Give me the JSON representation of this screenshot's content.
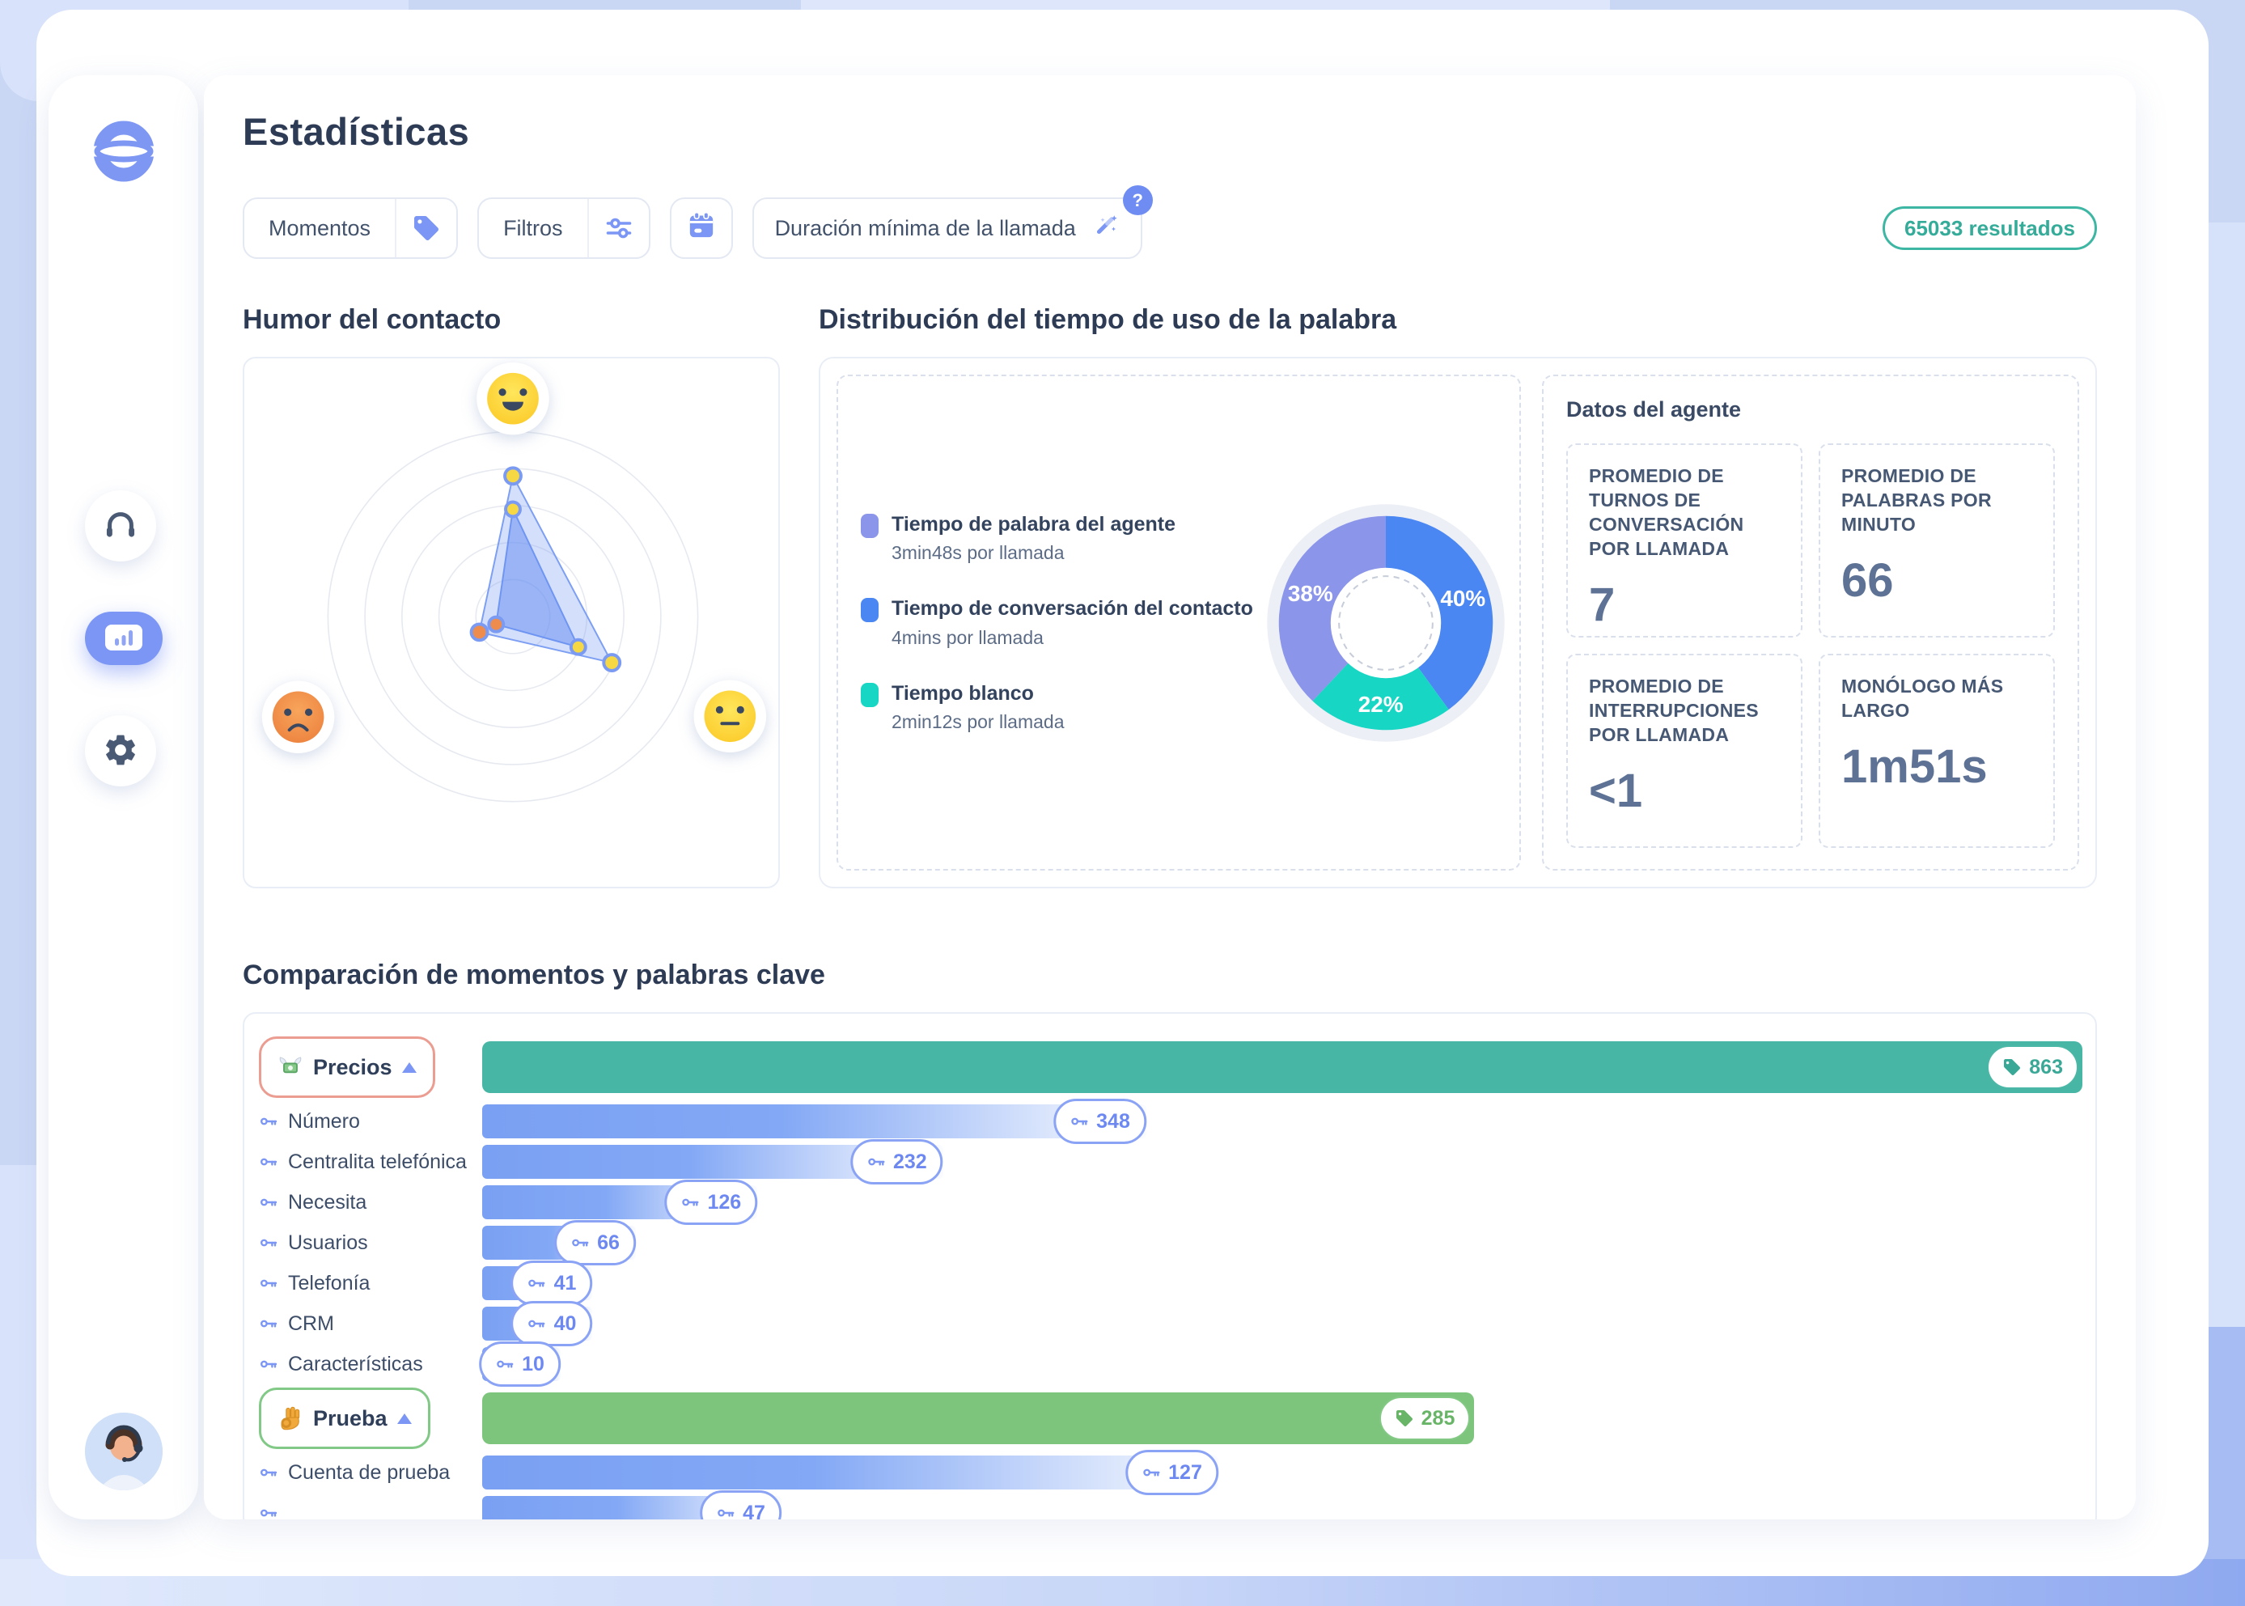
{
  "page": {
    "title": "Estadísticas"
  },
  "header": {
    "filters": {
      "momentos_label": "Momentos",
      "filtros_label": "Filtros",
      "duracion_label": "Duración mínima de la llamada",
      "help_badge": "?"
    },
    "results_badge": "65033 resultados"
  },
  "sidebar": {
    "items": [
      {
        "name": "calls",
        "icon": "headphones-icon",
        "active": false
      },
      {
        "name": "statistics",
        "icon": "bar-chart-icon",
        "active": true
      },
      {
        "name": "settings",
        "icon": "gear-icon",
        "active": false
      }
    ]
  },
  "sections": {
    "mood": {
      "title": "Humor del contacto"
    },
    "distribution": {
      "title": "Distribución del tiempo de uso de la palabra",
      "legend": [
        {
          "label": "Tiempo de palabra del agente",
          "sublabel": "3min48s por llamada",
          "color": "#8b95e9"
        },
        {
          "label": "Tiempo de conversación del contacto",
          "sublabel": "4mins por llamada",
          "color": "#4a87f2"
        },
        {
          "label": "Tiempo blanco",
          "sublabel": "2min12s por llamada",
          "color": "#17d6c3"
        }
      ],
      "agent_panel": {
        "title": "Datos del agente",
        "stats": [
          {
            "label": "PROMEDIO DE TURNOS DE CONVERSACIÓN POR LLAMADA",
            "value": "7"
          },
          {
            "label": "PROMEDIO DE PALABRAS POR MINUTO",
            "value": "66"
          },
          {
            "label": "PROMEDIO DE INTERRUPCIONES POR LLAMADA",
            "value": "<1"
          },
          {
            "label": "MONÓLOGO MÁS LARGO",
            "value": "1m51s"
          }
        ]
      }
    },
    "comparison": {
      "title": "Comparación de momentos y palabras clave"
    }
  },
  "chart_data": [
    {
      "id": "talk_time_donut",
      "type": "pie",
      "title": "Distribución del tiempo de uso de la palabra",
      "start": "top",
      "direction": "clockwise",
      "slices": [
        {
          "label": "Tiempo de conversación del contacto",
          "pct": 40,
          "pct_label": "40%",
          "per_call": "4mins por llamada",
          "color": "#4a87f2"
        },
        {
          "label": "Tiempo blanco",
          "pct": 22,
          "pct_label": "22%",
          "per_call": "2min12s por llamada",
          "color": "#17d6c3"
        },
        {
          "label": "Tiempo de palabra del agente",
          "pct": 38,
          "pct_label": "38%",
          "per_call": "3min48s por llamada",
          "color": "#8b95e9"
        }
      ]
    },
    {
      "id": "mood_radar",
      "type": "radar",
      "title": "Humor del contacto",
      "rings": 5,
      "axes": [
        {
          "id": "happy",
          "emoji": "happy-face",
          "angle_deg": -90,
          "emoji_pos": [
            334,
            50
          ]
        },
        {
          "id": "neutral",
          "emoji": "neutral-face",
          "angle_deg": 25,
          "emoji_pos": [
            604,
            445
          ]
        },
        {
          "id": "sad",
          "emoji": "sad-face",
          "angle_deg": 155,
          "emoji_pos": [
            67,
            446
          ]
        }
      ],
      "series": [
        {
          "name": "serie-exterior",
          "values": {
            "happy": 0.76,
            "neutral": 0.59,
            "sad": 0.2
          },
          "fill": "rgba(133,162,244,0.35)",
          "stroke": "#7d9ff3"
        },
        {
          "name": "serie-interior",
          "values": {
            "happy": 0.58,
            "neutral": 0.39,
            "sad": 0.1
          },
          "fill": "rgba(96,138,242,0.50)",
          "stroke": "#6f95f2"
        }
      ],
      "dot_colors": {
        "happy": "#f6d844",
        "neutral": "#f6d844",
        "sad": "#ee8c4d"
      }
    },
    {
      "id": "moments_bars",
      "type": "bar",
      "title": "Comparación de momentos y palabras clave",
      "rows": [
        {
          "kind": "moment",
          "label": "Precios",
          "emoji": "money-with-wings",
          "value": 863,
          "width_pct": 100,
          "bar_color": "#48b6a4",
          "chip_border": "#eb9d92",
          "badge_color": "#3aa897",
          "badge_border": "#4bb7a6"
        },
        {
          "kind": "keyword",
          "label": "Número",
          "value": 348,
          "width_pct": 41.5
        },
        {
          "kind": "keyword",
          "label": "Centralita telefónica",
          "value": 232,
          "width_pct": 28.8
        },
        {
          "kind": "keyword",
          "label": "Necesita",
          "value": 126,
          "width_pct": 17.2
        },
        {
          "kind": "keyword",
          "label": "Usuarios",
          "value": 66,
          "width_pct": 9.6
        },
        {
          "kind": "keyword",
          "label": "Telefonía",
          "value": 41,
          "width_pct": 6.9
        },
        {
          "kind": "keyword",
          "label": "CRM",
          "value": 40,
          "width_pct": 6.9
        },
        {
          "kind": "keyword",
          "label": "Características",
          "value": 10,
          "width_pct": 4.9
        },
        {
          "kind": "moment",
          "label": "Prueba",
          "emoji": "ok-hand",
          "value": 285,
          "width_pct": 62,
          "bar_color": "#7dc57c",
          "chip_border": "#82c987",
          "badge_color": "#69b568",
          "badge_border": "#83c985"
        },
        {
          "kind": "keyword",
          "label": "Cuenta de prueba",
          "value": 127,
          "width_pct": 46
        },
        {
          "kind": "keyword",
          "label": "",
          "value": 47,
          "width_pct": 18.7,
          "clipped": true
        }
      ]
    }
  ]
}
